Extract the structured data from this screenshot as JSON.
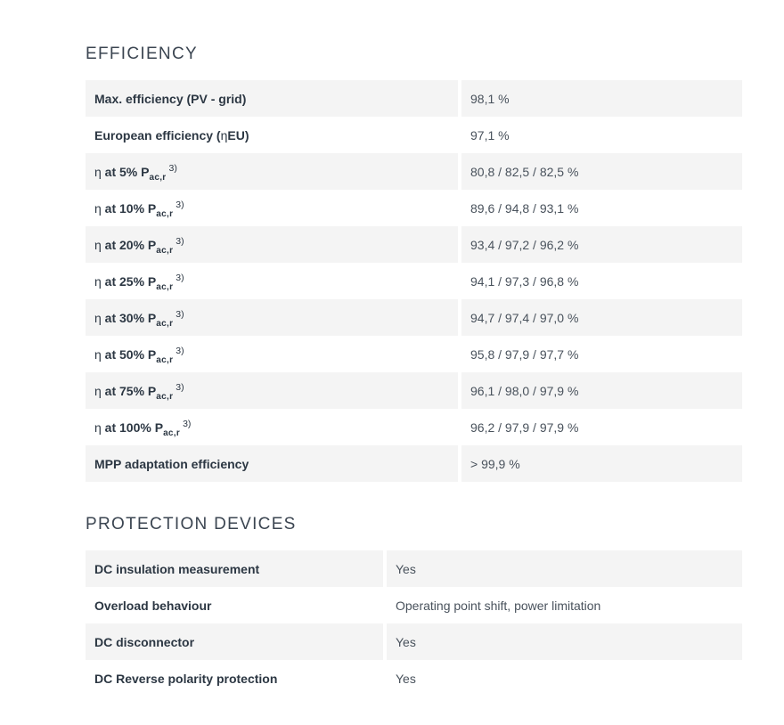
{
  "colors": {
    "row_alt_bg": "#f4f4f4",
    "heading_text": "#3b4551",
    "label_text": "#2c3743",
    "value_text": "#49525c",
    "page_bg": "#ffffff"
  },
  "sections": [
    {
      "title": "EFFICIENCY",
      "rows": [
        {
          "b2": "Max. efficiency (PV - grid)",
          "value": "98,1 %"
        },
        {
          "b1": "European efficiency (",
          "eta": "η",
          "b2": "EU)",
          "value": "97,1 %"
        },
        {
          "eta": "η",
          "b2": " at 5% P",
          "sub": "ac,r",
          "sup": "3)",
          "value": "80,8 / 82,5 / 82,5 %"
        },
        {
          "eta": "η",
          "b2": " at 10% P",
          "sub": "ac,r",
          "sup": "3)",
          "value": "89,6 / 94,8 / 93,1 %"
        },
        {
          "eta": "η",
          "b2": " at 20% P",
          "sub": "ac,r",
          "sup": "3)",
          "value": "93,4 / 97,2 / 96,2 %"
        },
        {
          "eta": "η",
          "b2": " at 25% P",
          "sub": "ac,r",
          "sup": "3)",
          "value": "94,1 / 97,3 / 96,8 %"
        },
        {
          "eta": "η",
          "b2": " at 30% P",
          "sub": "ac,r",
          "sup": "3)",
          "value": "94,7 / 97,4 / 97,0 %"
        },
        {
          "eta": "η",
          "b2": " at 50% P",
          "sub": "ac,r",
          "sup": "3)",
          "value": "95,8 / 97,9 / 97,7 %"
        },
        {
          "eta": "η",
          "b2": " at 75% P",
          "sub": "ac,r",
          "sup": "3)",
          "value": "96,1 / 98,0 / 97,9 %"
        },
        {
          "eta": "η",
          "b2": " at 100% P",
          "sub": "ac,r",
          "sup": "3)",
          "value": "96,2 / 97,9 / 97,9 %"
        },
        {
          "b2": "MPP adaptation efficiency",
          "value": "> 99,9 %"
        }
      ]
    },
    {
      "title": "PROTECTION DEVICES",
      "rows": [
        {
          "b2": "DC insulation measurement",
          "value": "Yes"
        },
        {
          "b2": "Overload behaviour",
          "value": "Operating point shift, power limitation"
        },
        {
          "b2": "DC disconnector",
          "value": "Yes"
        },
        {
          "b2": "DC Reverse polarity protection",
          "value": "Yes"
        }
      ]
    }
  ]
}
